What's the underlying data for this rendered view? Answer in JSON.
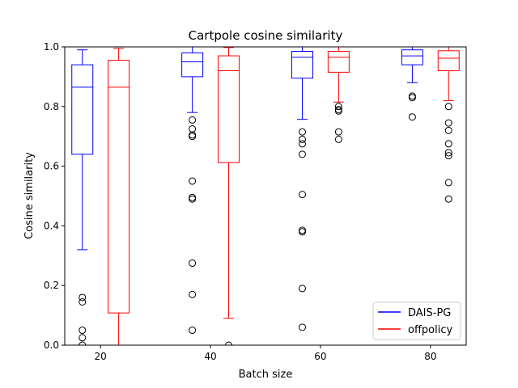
{
  "chart_data": {
    "type": "box",
    "title": "Cartpole cosine similarity",
    "xlabel": "Batch size",
    "ylabel": "Cosine similarity",
    "xlim": [
      13.5,
      86.5
    ],
    "ylim": [
      0,
      1
    ],
    "xticks": [
      20,
      40,
      60,
      80
    ],
    "yticks": [
      0.0,
      0.2,
      0.4,
      0.6,
      0.8,
      1.0
    ],
    "ytick_labels": [
      "0.0",
      "0.2",
      "0.4",
      "0.6",
      "0.8",
      "1.0"
    ],
    "legend": {
      "location": "lower right"
    },
    "series": [
      {
        "name": "DAIS-PG",
        "color": "#0000ff",
        "boxes": [
          {
            "x": 16.7,
            "whisker_low": 0.32,
            "q1": 0.64,
            "median": 0.865,
            "q3": 0.94,
            "whisker_high": 0.99,
            "outliers": [
              0.16,
              0.145,
              0.05,
              0.025,
              0.0
            ]
          },
          {
            "x": 36.7,
            "whisker_low": 0.78,
            "q1": 0.9,
            "median": 0.95,
            "q3": 0.98,
            "whisker_high": 1.0,
            "outliers": [
              0.755,
              0.725,
              0.705,
              0.7,
              0.55,
              0.49,
              0.495,
              0.275,
              0.17,
              0.05
            ]
          },
          {
            "x": 56.7,
            "whisker_low": 0.757,
            "q1": 0.895,
            "median": 0.965,
            "q3": 0.985,
            "whisker_high": 1.0,
            "outliers": [
              0.715,
              0.69,
              0.675,
              0.64,
              0.505,
              0.385,
              0.38,
              0.19,
              0.06
            ]
          },
          {
            "x": 76.7,
            "whisker_low": 0.88,
            "q1": 0.94,
            "median": 0.97,
            "q3": 0.99,
            "whisker_high": 1.0,
            "outliers": [
              0.835,
              0.83,
              0.765
            ]
          }
        ]
      },
      {
        "name": "offpolicy",
        "color": "#ff0000",
        "boxes": [
          {
            "x": 23.3,
            "whisker_low": 0.0,
            "q1": 0.108,
            "median": 0.865,
            "q3": 0.955,
            "whisker_high": 0.995,
            "outliers": []
          },
          {
            "x": 43.3,
            "whisker_low": 0.09,
            "q1": 0.612,
            "median": 0.92,
            "q3": 0.97,
            "whisker_high": 0.998,
            "outliers": [
              0.0
            ]
          },
          {
            "x": 63.3,
            "whisker_low": 0.815,
            "q1": 0.915,
            "median": 0.965,
            "q3": 0.985,
            "whisker_high": 1.0,
            "outliers": [
              0.8,
              0.79,
              0.785,
              0.715,
              0.69
            ]
          },
          {
            "x": 83.3,
            "whisker_low": 0.82,
            "q1": 0.92,
            "median": 0.962,
            "q3": 0.987,
            "whisker_high": 1.0,
            "outliers": [
              0.8,
              0.745,
              0.72,
              0.675,
              0.645,
              0.635,
              0.545,
              0.49
            ]
          }
        ]
      }
    ]
  }
}
